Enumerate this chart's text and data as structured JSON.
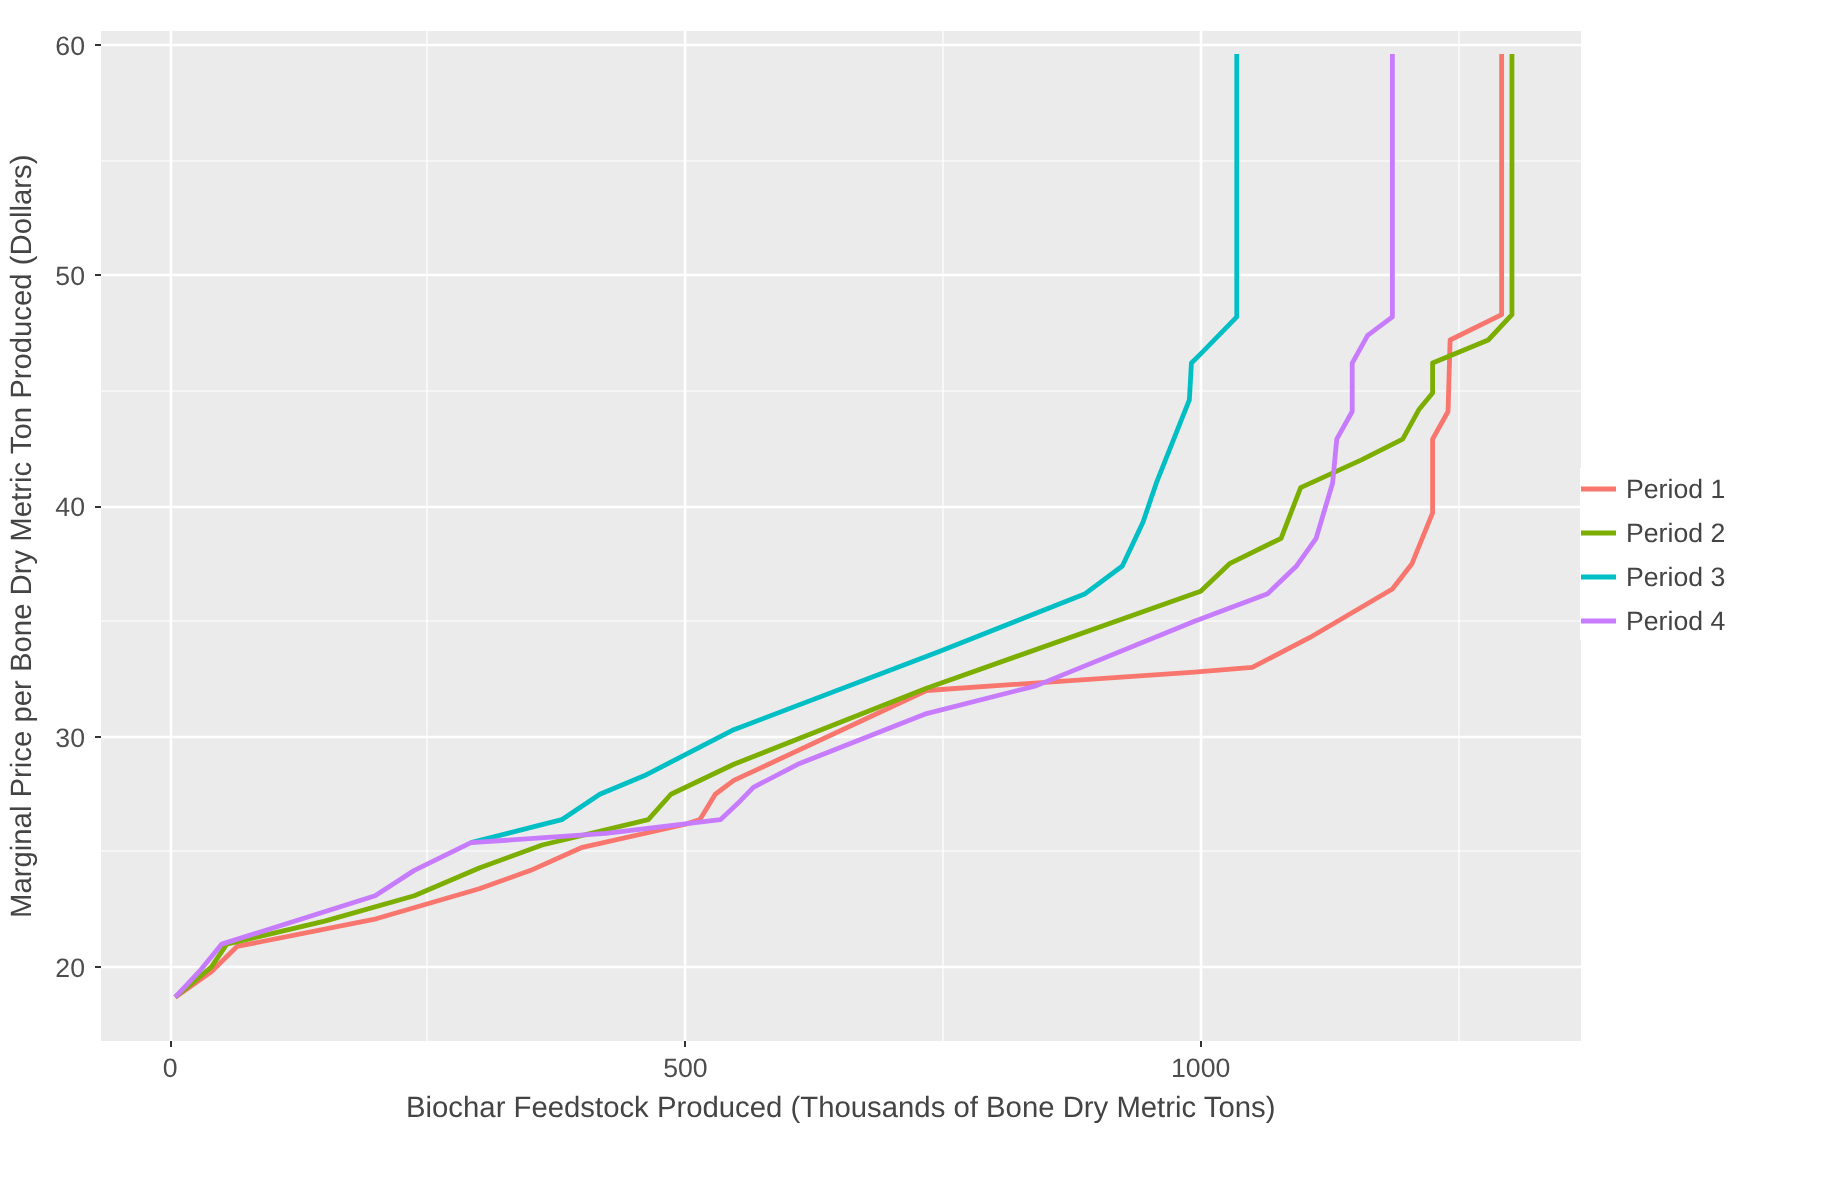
{
  "chart_data": {
    "type": "line",
    "xlabel": "Biochar Feedstock Produced (Thousands of Bone Dry Metric Tons)",
    "ylabel": "Marginal Price per Bone Dry Metric Ton Produced (Dollars)",
    "xlim": [
      -67,
      1369
    ],
    "ylim": [
      16.8,
      60.6
    ],
    "xticks": [
      0,
      500,
      1000
    ],
    "yticks": [
      20,
      30,
      40,
      50,
      60
    ],
    "grid": true,
    "legend": "right",
    "line_style": "solid",
    "marker": "none",
    "series": [
      {
        "name": "Period 1",
        "color": "#f8766d",
        "x": [
          5,
          40,
          65,
          200,
          300,
          350,
          400,
          500,
          514,
          529,
          547,
          734,
          994,
          1050,
          1106,
          1186,
          1205,
          1225,
          1225,
          1240,
          1242,
          1292,
          1292
        ],
        "values": [
          18.7,
          19.8,
          20.9,
          22.1,
          23.4,
          24.2,
          25.2,
          26.2,
          26.4,
          27.5,
          28.1,
          32.0,
          32.8,
          33.0,
          34.3,
          36.4,
          37.5,
          39.7,
          42.9,
          44.1,
          47.2,
          48.3,
          59.6
        ]
      },
      {
        "name": "Period 2",
        "color": "#7cae00",
        "x": [
          5,
          40,
          55,
          150,
          237,
          300,
          361,
          464,
          486,
          547,
          734,
          1000,
          1028,
          1078,
          1097,
          1156,
          1196,
          1212,
          1225,
          1225,
          1279,
          1302,
          1302
        ],
        "values": [
          18.7,
          20.0,
          21.0,
          22.0,
          23.1,
          24.3,
          25.3,
          26.4,
          27.5,
          28.8,
          32.1,
          36.3,
          37.5,
          38.6,
          40.8,
          42.0,
          42.9,
          44.2,
          44.9,
          46.2,
          47.2,
          48.3,
          59.6
        ]
      },
      {
        "name": "Period 3",
        "color": "#00bfc4",
        "x": [
          292,
          380,
          417,
          460,
          547,
          747,
          888,
          924,
          944,
          957,
          989,
          991,
          1000,
          1035,
          1035
        ],
        "values": [
          25.4,
          26.4,
          27.5,
          28.3,
          30.3,
          33.7,
          36.2,
          37.4,
          39.3,
          41.0,
          44.6,
          46.2,
          46.6,
          48.2,
          59.6
        ]
      },
      {
        "name": "Period 4",
        "color": "#c77cff",
        "x": [
          5,
          30,
          50,
          199,
          237,
          292,
          423,
          534,
          553,
          566,
          609,
          734,
          840,
          994,
          1065,
          1093,
          1112,
          1128,
          1132,
          1147,
          1147,
          1162,
          1186,
          1186
        ],
        "values": [
          18.7,
          19.9,
          21.0,
          23.1,
          24.2,
          25.4,
          25.8,
          26.4,
          27.2,
          27.8,
          28.8,
          31.0,
          32.2,
          35.0,
          36.2,
          37.4,
          38.6,
          41.0,
          42.9,
          44.1,
          46.2,
          47.4,
          48.2,
          59.6
        ]
      }
    ]
  }
}
